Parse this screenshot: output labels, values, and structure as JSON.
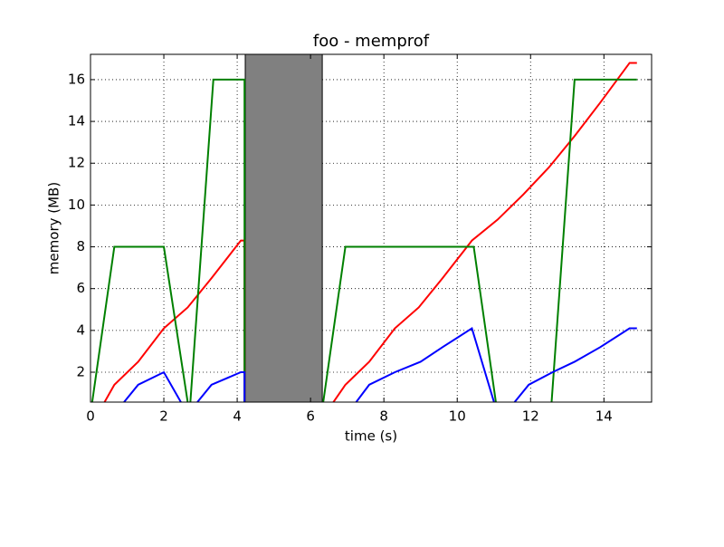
{
  "chart_data": {
    "type": "line",
    "title": "foo - memprof",
    "x_label": "time (s)",
    "y_label": "memory (MB)",
    "xlim": [
      0,
      15.3
    ],
    "ylim": [
      0.57,
      17.21
    ],
    "xticks": [
      0,
      2,
      4,
      6,
      8,
      10,
      12,
      14
    ],
    "yticks": [
      2,
      4,
      6,
      8,
      10,
      12,
      14,
      16
    ],
    "grid": true,
    "span": {
      "x": [
        4.22,
        6.32
      ],
      "color": "#808080"
    },
    "series": [
      {
        "color": "#ff0000",
        "x": [
          0.2,
          0.65,
          1.3,
          2.0,
          2.65,
          3.3,
          4.1,
          4.2,
          4.2,
          null,
          6.4,
          6.95,
          7.6,
          8.3,
          8.95,
          9.6,
          10.4,
          11.1,
          11.8,
          12.5,
          13.2,
          13.9,
          14.7,
          14.9
        ],
        "values": [
          0,
          1.4,
          2.5,
          4.1,
          5.1,
          6.5,
          8.3,
          8.3,
          0,
          null,
          0,
          1.4,
          2.5,
          4.1,
          5.1,
          6.5,
          8.3,
          9.3,
          10.5,
          11.8,
          13.3,
          14.9,
          16.8,
          16.8
        ]
      },
      {
        "color": "#008000",
        "x": [
          0,
          0.65,
          2.0,
          2.7,
          3.35,
          4.2,
          4.2,
          null,
          6.3,
          6.95,
          10.45,
          11.1,
          12.55,
          13.2,
          14.9
        ],
        "values": [
          0,
          8,
          8,
          0,
          16,
          16,
          0,
          null,
          0,
          8,
          8,
          0,
          0,
          16,
          16
        ]
      },
      {
        "color": "#0000ff",
        "x": [
          0.65,
          1.3,
          2.0,
          2.65,
          3.3,
          4.1,
          4.2,
          4.2,
          null,
          7.0,
          7.6,
          8.3,
          9.0,
          9.6,
          10.4,
          11.1,
          11.3,
          11.95,
          12.6,
          13.2,
          13.9,
          14.7,
          14.9
        ],
        "values": [
          0,
          1.4,
          2.0,
          0,
          1.4,
          2.0,
          2.0,
          0,
          null,
          0,
          1.4,
          2.0,
          2.5,
          3.2,
          4.1,
          0,
          0,
          1.4,
          2.0,
          2.5,
          3.2,
          4.1,
          4.1
        ]
      }
    ]
  }
}
